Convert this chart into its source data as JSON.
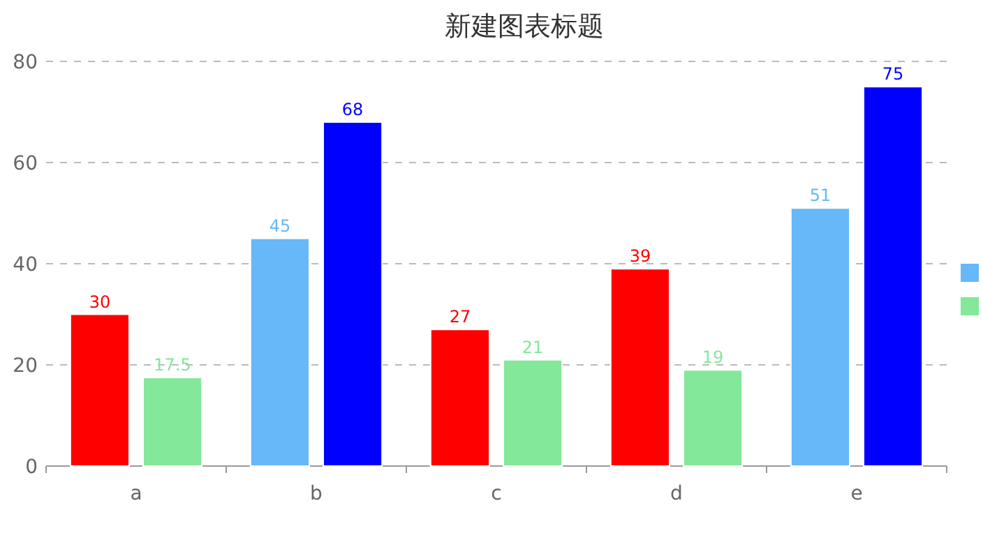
{
  "chart_data": {
    "type": "bar",
    "title": "新建图表标题",
    "categories": [
      "a",
      "b",
      "c",
      "d",
      "e"
    ],
    "series": [
      {
        "color": "#66b8f8",
        "colors": [
          "#ff0000",
          "#66b8f8",
          "#ff0000",
          "#ff0000",
          "#66b8f8"
        ],
        "values": [
          30,
          45,
          27,
          39,
          51
        ]
      },
      {
        "color": "#84e89a",
        "colors": [
          "#84e89a",
          "#0000ff",
          "#84e89a",
          "#84e89a",
          "#0000ff"
        ],
        "values": [
          17.5,
          68,
          21,
          19,
          75
        ]
      }
    ],
    "ylim": [
      0,
      80
    ],
    "yticks": [
      0,
      20,
      40,
      60,
      80
    ],
    "grid": "y",
    "data_labels": true
  }
}
